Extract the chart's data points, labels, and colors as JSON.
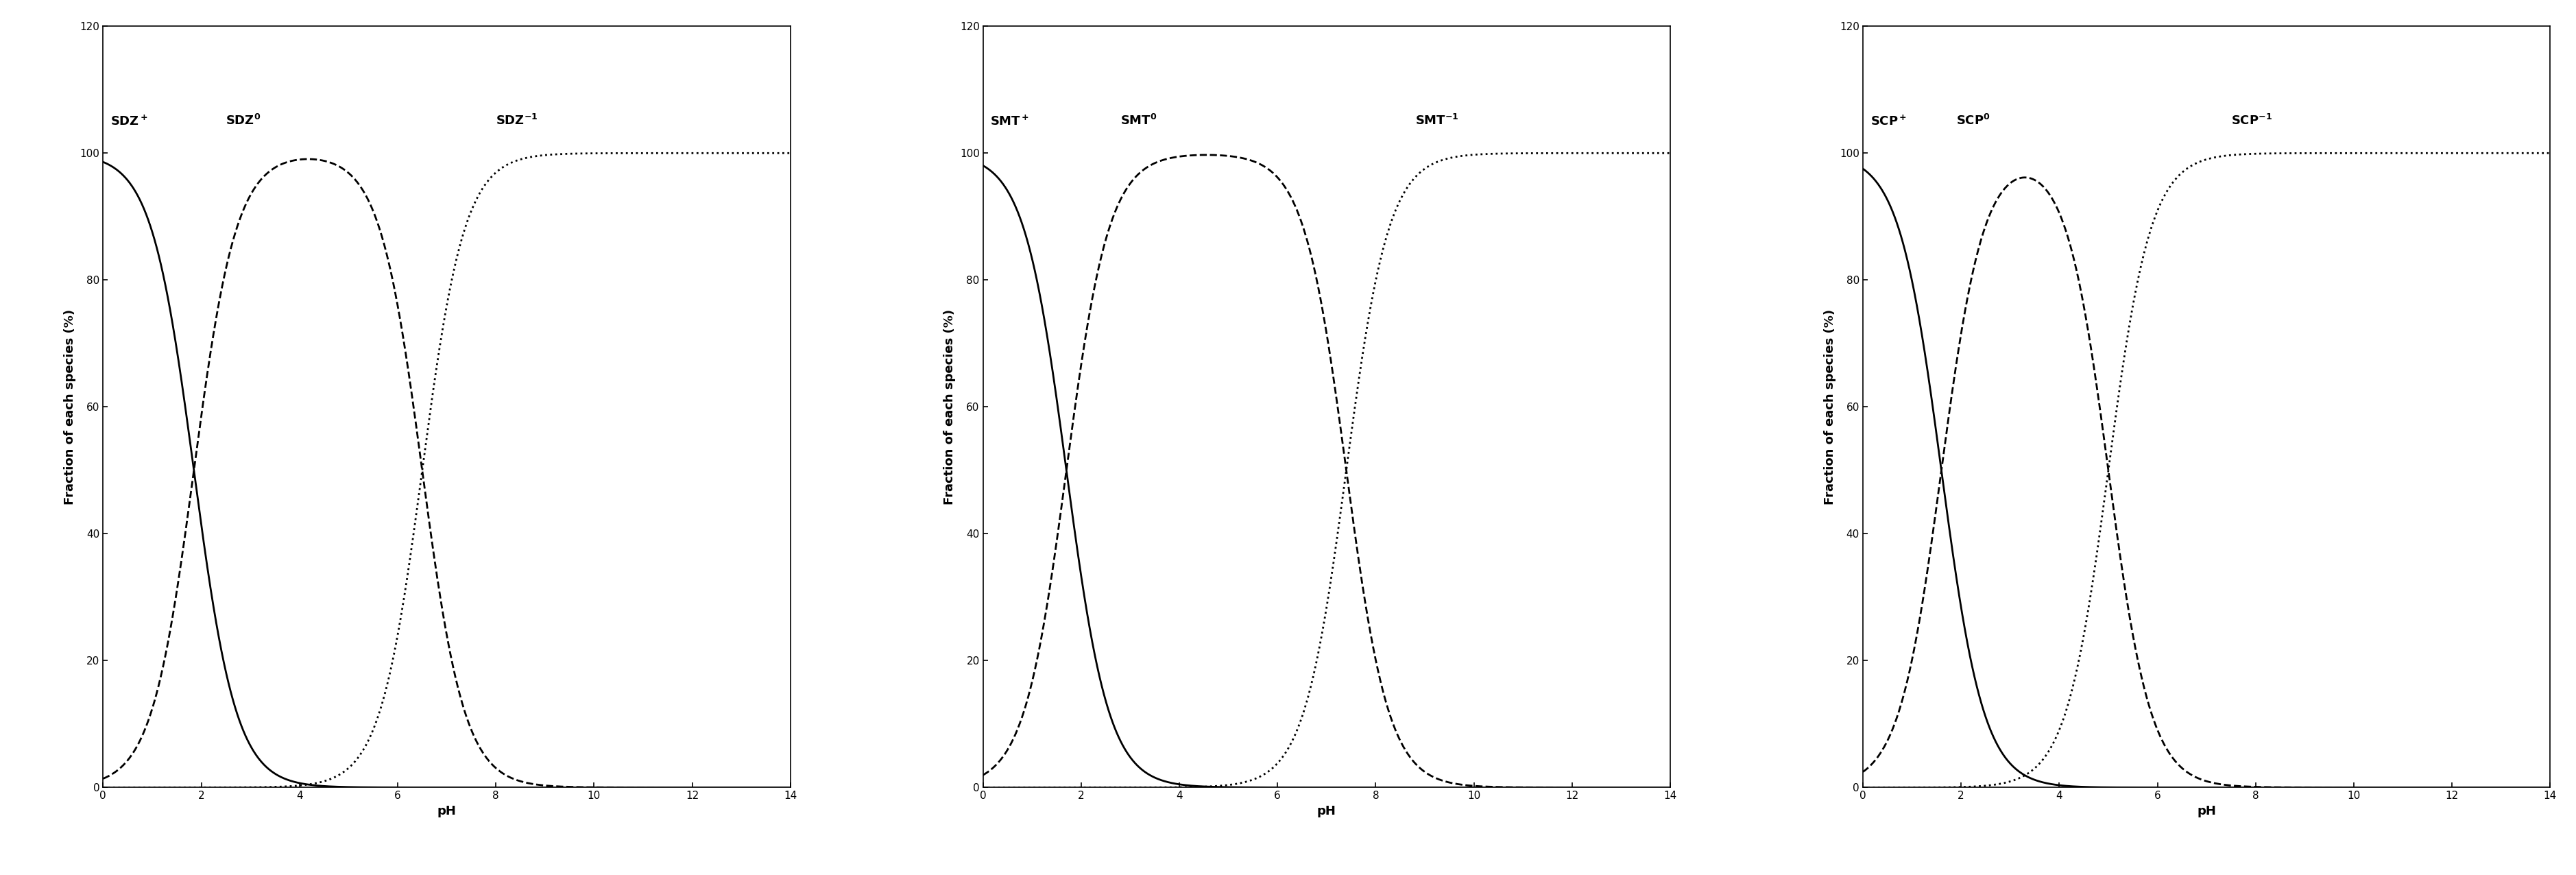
{
  "panels": [
    {
      "name": "SDZ",
      "pKa1": 1.85,
      "pKa2": 6.5,
      "lpos_plus": [
        0.15,
        104
      ],
      "lpos_zero": [
        2.5,
        104
      ],
      "lpos_neg": [
        8.0,
        104
      ]
    },
    {
      "name": "SMT",
      "pKa1": 1.7,
      "pKa2": 7.4,
      "lpos_plus": [
        0.15,
        104
      ],
      "lpos_zero": [
        2.8,
        104
      ],
      "lpos_neg": [
        8.8,
        104
      ]
    },
    {
      "name": "SCP",
      "pKa1": 1.6,
      "pKa2": 5.0,
      "lpos_plus": [
        0.15,
        104
      ],
      "lpos_zero": [
        1.9,
        104
      ],
      "lpos_neg": [
        7.5,
        104
      ]
    }
  ],
  "ylabel": "Fraction of each species (%)",
  "xlabel": "pH",
  "xlim": [
    0,
    14
  ],
  "ylim": [
    0,
    120
  ],
  "yticks": [
    0,
    20,
    40,
    60,
    80,
    100,
    120
  ],
  "xticks": [
    0,
    2,
    4,
    6,
    8,
    10,
    12,
    14
  ],
  "line_color": "#000000",
  "background_color": "#ffffff",
  "label_fontsize": 13,
  "tick_fontsize": 11,
  "axis_label_fontsize": 13
}
